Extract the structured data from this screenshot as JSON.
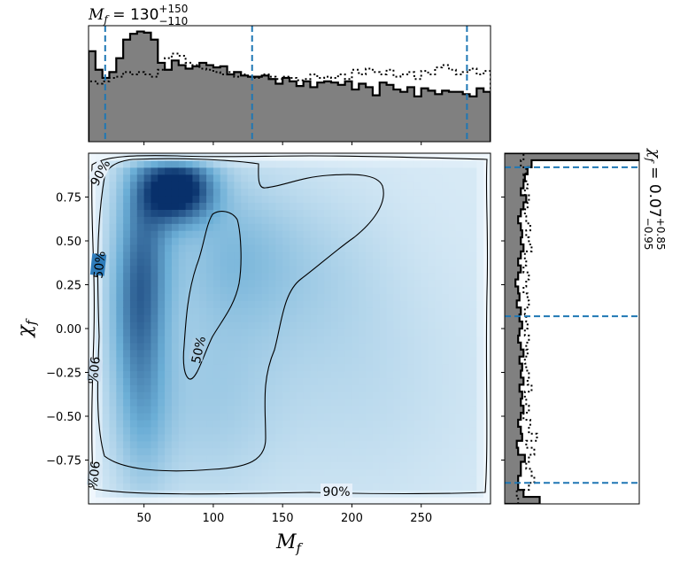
{
  "chart_data": {
    "type": "heatmap",
    "x_param_label": "M",
    "x_param_sub": "f",
    "y_param_label": "χ",
    "y_param_sub": "f",
    "xlim": [
      10,
      300
    ],
    "ylim": [
      -1.0,
      1.0
    ],
    "x_ticks": [
      50,
      100,
      150,
      200,
      250
    ],
    "y_ticks": [
      -0.75,
      -0.5,
      -0.25,
      0.0,
      0.25,
      0.5,
      0.75
    ],
    "y_tick_labels": [
      "−0.75",
      "−0.50",
      "−0.25",
      "0.00",
      "0.25",
      "0.50",
      "0.75"
    ],
    "x_summary": {
      "param": "M",
      "sub": "f",
      "median": "130",
      "plus": "+150",
      "minus": "−110"
    },
    "y_summary": {
      "param": "χ",
      "sub": "f",
      "median": "0.07",
      "plus": "+0.85",
      "minus": "−0.95"
    },
    "x_quantile_lines": [
      22,
      128,
      283
    ],
    "y_quantile_lines": [
      -0.88,
      0.07,
      0.92
    ],
    "contour_levels": [
      "50%",
      "90%"
    ],
    "x_marginal": {
      "bin_width": 5,
      "solid": [
        0.78,
        0.62,
        0.55,
        0.6,
        0.72,
        0.88,
        0.93,
        0.95,
        0.94,
        0.88,
        0.68,
        0.62,
        0.7,
        0.66,
        0.63,
        0.65,
        0.68,
        0.66,
        0.64,
        0.65,
        0.58,
        0.6,
        0.57,
        0.56,
        0.56,
        0.57,
        0.54,
        0.5,
        0.55,
        0.52,
        0.48,
        0.52,
        0.47,
        0.51,
        0.52,
        0.51,
        0.49,
        0.52,
        0.45,
        0.5,
        0.47,
        0.4,
        0.51,
        0.49,
        0.45,
        0.43,
        0.47,
        0.39,
        0.46,
        0.44,
        0.41,
        0.44,
        0.43,
        0.43,
        0.41,
        0.39,
        0.46,
        0.43
      ],
      "dotted": [
        0.52,
        0.5,
        0.52,
        0.55,
        0.56,
        0.6,
        0.58,
        0.6,
        0.58,
        0.56,
        0.62,
        0.72,
        0.76,
        0.74,
        0.68,
        0.66,
        0.63,
        0.62,
        0.6,
        0.58,
        0.6,
        0.56,
        0.58,
        0.56,
        0.55,
        0.58,
        0.56,
        0.54,
        0.56,
        0.55,
        0.53,
        0.54,
        0.58,
        0.55,
        0.56,
        0.55,
        0.58,
        0.54,
        0.62,
        0.58,
        0.63,
        0.6,
        0.58,
        0.62,
        0.56,
        0.58,
        0.6,
        0.54,
        0.61,
        0.58,
        0.64,
        0.66,
        0.62,
        0.58,
        0.6,
        0.63,
        0.58,
        0.61
      ]
    },
    "y_marginal": {
      "bin_width": 0.04,
      "solid": [
        0.26,
        0.14,
        0.1,
        0.1,
        0.12,
        0.12,
        0.15,
        0.1,
        0.09,
        0.13,
        0.12,
        0.1,
        0.12,
        0.14,
        0.12,
        0.13,
        0.11,
        0.14,
        0.12,
        0.13,
        0.11,
        0.14,
        0.12,
        0.1,
        0.11,
        0.13,
        0.11,
        0.12,
        0.09,
        0.11,
        0.1,
        0.08,
        0.1,
        0.12,
        0.1,
        0.12,
        0.14,
        0.12,
        0.13,
        0.12,
        0.1,
        0.12,
        0.14,
        0.16,
        0.12,
        0.14,
        0.15,
        0.17,
        0.2,
        1.0
      ],
      "dotted": [
        0.1,
        0.09,
        0.18,
        0.22,
        0.2,
        0.16,
        0.18,
        0.22,
        0.16,
        0.24,
        0.18,
        0.19,
        0.14,
        0.18,
        0.16,
        0.15,
        0.2,
        0.17,
        0.18,
        0.16,
        0.15,
        0.17,
        0.16,
        0.18,
        0.15,
        0.17,
        0.16,
        0.15,
        0.18,
        0.17,
        0.14,
        0.16,
        0.18,
        0.14,
        0.16,
        0.15,
        0.2,
        0.18,
        0.16,
        0.19,
        0.16,
        0.15,
        0.17,
        0.18,
        0.15,
        0.17,
        0.14,
        0.16,
        0.12,
        0.14
      ]
    },
    "density_blobs": [
      {
        "x": 75,
        "y": 0.8,
        "sx": 18,
        "sy": 0.13,
        "w": 1.0
      },
      {
        "x": 50,
        "y": 0.55,
        "sx": 15,
        "sy": 0.35,
        "w": 0.45
      },
      {
        "x": 45,
        "y": 0.1,
        "sx": 14,
        "sy": 0.3,
        "w": 0.4
      },
      {
        "x": 48,
        "y": -0.45,
        "sx": 15,
        "sy": 0.35,
        "w": 0.32
      },
      {
        "x": 110,
        "y": 0.45,
        "sx": 30,
        "sy": 0.3,
        "w": 0.22
      },
      {
        "x": 95,
        "y": -0.4,
        "sx": 35,
        "sy": 0.4,
        "w": 0.18
      },
      {
        "x": 160,
        "y": 0.35,
        "sx": 45,
        "sy": 0.35,
        "w": 0.14
      },
      {
        "x": 200,
        "y": -0.3,
        "sx": 60,
        "sy": 0.5,
        "w": 0.1
      }
    ],
    "density_floor": 0.12,
    "colors": {
      "marginal_fill": "#808080",
      "quantile_line": "#1f77b4",
      "cmap_low": "#f7fbff",
      "cmap_mid": "#6baed6",
      "cmap_high": "#08306b"
    }
  }
}
